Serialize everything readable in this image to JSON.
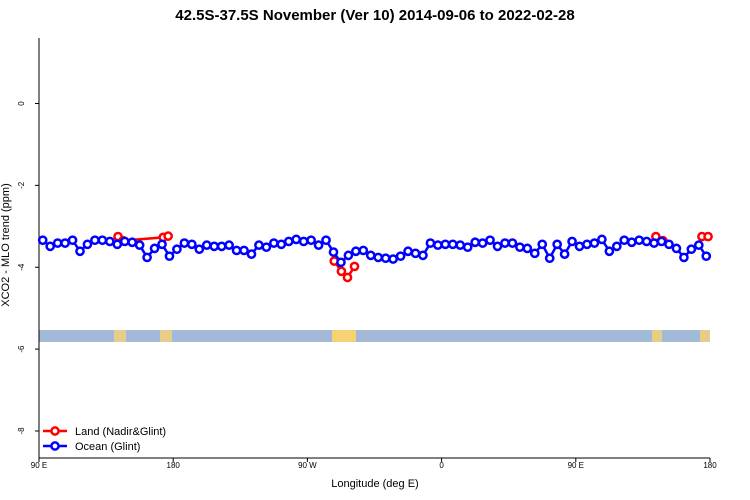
{
  "chart_data": {
    "type": "line",
    "title": "42.5S-37.5S November (Ver 10)   2014-09-06 to 2022-02-28",
    "xlabel": "Longitude (deg E)",
    "ylabel": "XCO2 - MLO trend (ppm)",
    "xlim": [
      90,
      540
    ],
    "ylim": [
      -8.66,
      1.6
    ],
    "xticks": [
      {
        "value": 90,
        "label": "90 E"
      },
      180,
      {
        "value": 270,
        "label": "90 W"
      },
      {
        "value": 360,
        "label": "0"
      },
      {
        "value": 450,
        "label": "90 E"
      },
      {
        "value": 540,
        "label": "180"
      }
    ],
    "yticks": [
      0,
      -2,
      -4,
      -6,
      -8
    ],
    "legend": "bottom-left",
    "series": [
      {
        "name": "Land (Nadir&Glint)",
        "color": "#ff0000",
        "x": [
          143,
          146.4,
          173.3,
          176.6,
          null,
          288,
          292.8,
          296.9,
          301.6,
          null,
          503.7,
          508.4,
          null,
          534.6,
          538.7
        ],
        "values": [
          -3.25,
          -3.35,
          -3.27,
          -3.24,
          null,
          -3.85,
          -4.1,
          -4.25,
          -3.98,
          null,
          -3.25,
          -3.35,
          null,
          -3.25,
          -3.25
        ]
      },
      {
        "name": "Ocean (Glint)",
        "color": "#0000ff",
        "x": [
          92.5,
          97.5,
          102.5,
          107.5,
          112.5,
          117.5,
          122.5,
          127.5,
          132.5,
          137.5,
          142.5,
          147.5,
          152.5,
          157.5,
          162.5,
          167.5,
          172.5,
          177.5,
          182.5,
          187.5,
          192.5,
          197.5,
          202.5,
          207.5,
          212.5,
          217.5,
          222.5,
          227.5,
          232.5,
          237.5,
          242.5,
          247.5,
          252.5,
          257.5,
          262.5,
          267.5,
          272.5,
          277.5,
          282.5,
          287.5,
          292.5,
          297.5,
          302.5,
          307.5,
          312.5,
          317.5,
          322.5,
          327.5,
          332.5,
          337.5,
          342.5,
          347.5,
          352.5,
          357.5,
          362.5,
          367.5,
          372.5,
          377.5,
          382.5,
          387.5,
          392.5,
          397.5,
          402.5,
          407.5,
          412.5,
          417.5,
          422.5,
          427.5,
          432.5,
          437.5,
          442.5,
          447.5,
          452.5,
          457.5,
          462.5,
          467.5,
          472.5,
          477.5,
          482.5,
          487.5,
          492.5,
          497.5,
          502.5,
          507.5,
          512.5,
          517.5,
          522.5,
          527.5,
          532.5,
          537.5
        ],
        "values": [
          -3.34,
          -3.49,
          -3.41,
          -3.41,
          -3.34,
          -3.61,
          -3.44,
          -3.34,
          -3.34,
          -3.37,
          -3.44,
          -3.37,
          -3.39,
          -3.46,
          -3.76,
          -3.54,
          -3.44,
          -3.73,
          -3.56,
          -3.41,
          -3.44,
          -3.56,
          -3.46,
          -3.49,
          -3.49,
          -3.46,
          -3.59,
          -3.59,
          -3.68,
          -3.46,
          -3.51,
          -3.41,
          -3.44,
          -3.37,
          -3.32,
          -3.37,
          -3.34,
          -3.46,
          -3.34,
          -3.63,
          -3.88,
          -3.71,
          -3.61,
          -3.59,
          -3.71,
          -3.76,
          -3.78,
          -3.8,
          -3.73,
          -3.61,
          -3.66,
          -3.71,
          -3.41,
          -3.46,
          -3.44,
          -3.44,
          -3.46,
          -3.51,
          -3.39,
          -3.41,
          -3.34,
          -3.49,
          -3.41,
          -3.41,
          -3.51,
          -3.54,
          -3.66,
          -3.44,
          -3.78,
          -3.44,
          -3.68,
          -3.37,
          -3.49,
          -3.44,
          -3.41,
          -3.32,
          -3.61,
          -3.49,
          -3.34,
          -3.39,
          -3.34,
          -3.37,
          -3.41,
          -3.37,
          -3.44,
          -3.54,
          -3.76,
          -3.56,
          -3.46,
          -3.73
        ]
      }
    ]
  }
}
